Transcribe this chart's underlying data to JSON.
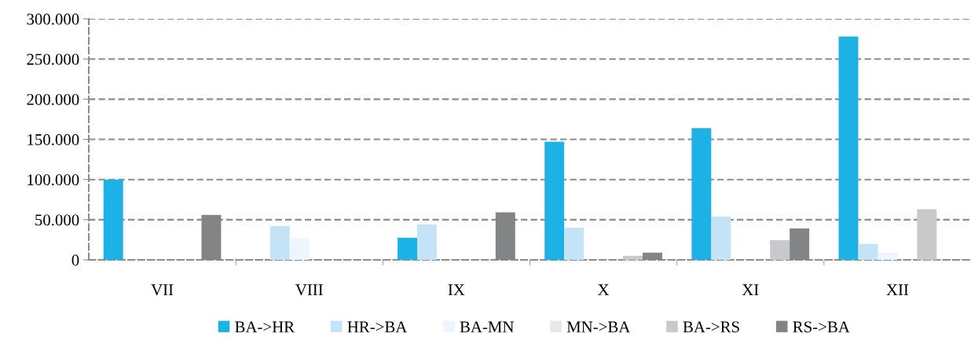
{
  "chart_data": {
    "type": "bar",
    "categories": [
      "VII",
      "VIII",
      "IX",
      "X",
      "XI",
      "XII"
    ],
    "series": [
      {
        "name": "BA->HR",
        "color": "#1db2e6",
        "values": [
          100000,
          0,
          27500,
          147000,
          164000,
          278000
        ]
      },
      {
        "name": "HR->BA",
        "color": "#c5e3f6",
        "values": [
          0,
          42000,
          44000,
          40000,
          54000,
          20000
        ]
      },
      {
        "name": "BA-MN",
        "color": "#eef5fd",
        "values": [
          0,
          27000,
          0,
          0,
          0,
          9000
        ]
      },
      {
        "name": "MN->BA",
        "color": "#e8e8e8",
        "values": [
          0,
          0,
          0,
          0,
          0,
          0
        ]
      },
      {
        "name": "BA->RS",
        "color": "#c8c9cb",
        "values": [
          0,
          0,
          0,
          5000,
          24500,
          63000
        ]
      },
      {
        "name": "RS->BA",
        "color": "#838485",
        "values": [
          56000,
          0,
          59000,
          9000,
          39000,
          0
        ]
      }
    ],
    "ylim": [
      0,
      300000
    ],
    "yticks": [
      {
        "value": 0,
        "label": "0"
      },
      {
        "value": 50000,
        "label": "50.000"
      },
      {
        "value": 100000,
        "label": "100.000"
      },
      {
        "value": 150000,
        "label": "150.000"
      },
      {
        "value": 200000,
        "label": "200.000"
      },
      {
        "value": 250000,
        "label": "250.000"
      },
      {
        "value": 300000,
        "label": "300.000"
      }
    ],
    "grid": "y",
    "legend": "bottom"
  }
}
